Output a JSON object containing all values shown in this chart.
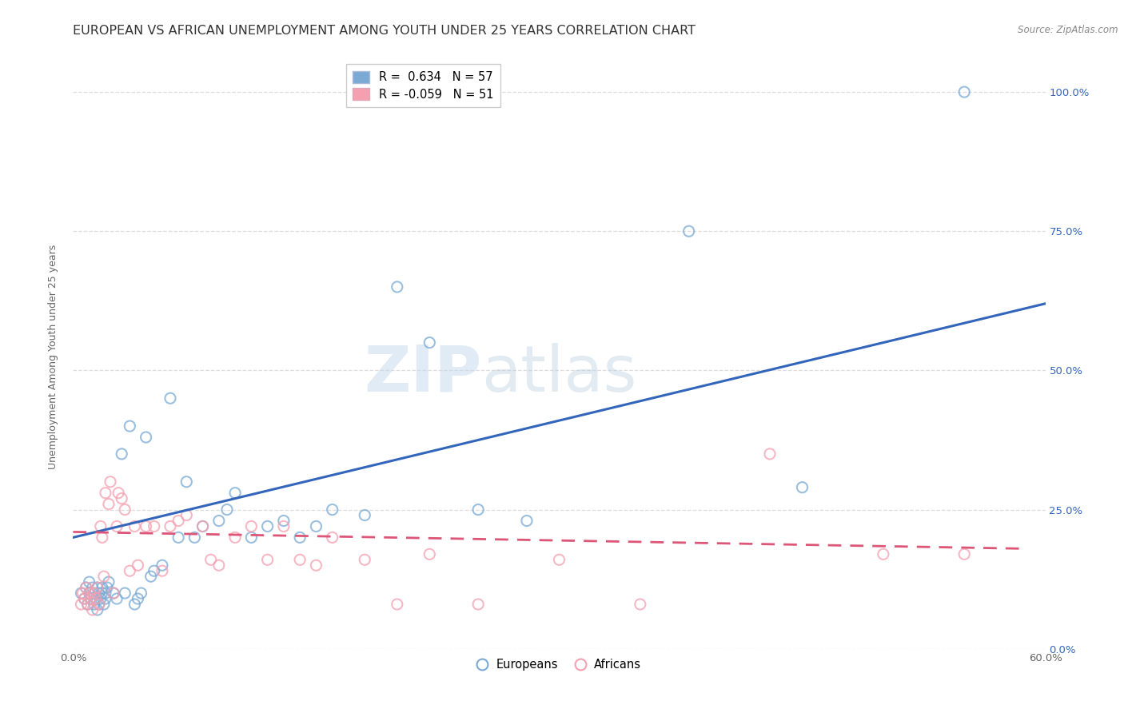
{
  "title": "EUROPEAN VS AFRICAN UNEMPLOYMENT AMONG YOUTH UNDER 25 YEARS CORRELATION CHART",
  "source": "Source: ZipAtlas.com",
  "ylabel": "Unemployment Among Youth under 25 years",
  "xlim": [
    0.0,
    0.6
  ],
  "ylim": [
    0.0,
    1.05
  ],
  "xticks": [
    0.0,
    0.1,
    0.2,
    0.3,
    0.4,
    0.5,
    0.6
  ],
  "xtick_labels": [
    "0.0%",
    "",
    "",
    "",
    "",
    "",
    "60.0%"
  ],
  "ytick_labels_right": [
    "0.0%",
    "25.0%",
    "50.0%",
    "75.0%",
    "100.0%"
  ],
  "yticks_right": [
    0.0,
    0.25,
    0.5,
    0.75,
    1.0
  ],
  "legend_entries": [
    {
      "label": "R =  0.634   N = 57",
      "color": "#7aaad4"
    },
    {
      "label": "R = -0.059   N = 51",
      "color": "#f4a0b0"
    }
  ],
  "blue_scatter_x": [
    0.005,
    0.007,
    0.008,
    0.009,
    0.01,
    0.01,
    0.011,
    0.012,
    0.013,
    0.013,
    0.014,
    0.015,
    0.015,
    0.016,
    0.016,
    0.017,
    0.018,
    0.018,
    0.019,
    0.02,
    0.02,
    0.021,
    0.022,
    0.025,
    0.027,
    0.03,
    0.032,
    0.035,
    0.038,
    0.04,
    0.042,
    0.045,
    0.048,
    0.05,
    0.055,
    0.06,
    0.065,
    0.07,
    0.075,
    0.08,
    0.09,
    0.095,
    0.1,
    0.11,
    0.12,
    0.13,
    0.14,
    0.15,
    0.16,
    0.18,
    0.2,
    0.22,
    0.25,
    0.28,
    0.38,
    0.45,
    0.55
  ],
  "blue_scatter_y": [
    0.1,
    0.09,
    0.11,
    0.08,
    0.1,
    0.12,
    0.09,
    0.11,
    0.08,
    0.1,
    0.09,
    0.11,
    0.07,
    0.1,
    0.08,
    0.09,
    0.1,
    0.11,
    0.08,
    0.09,
    0.1,
    0.11,
    0.12,
    0.1,
    0.09,
    0.35,
    0.1,
    0.4,
    0.08,
    0.09,
    0.1,
    0.38,
    0.13,
    0.14,
    0.15,
    0.45,
    0.2,
    0.3,
    0.2,
    0.22,
    0.23,
    0.25,
    0.28,
    0.2,
    0.22,
    0.23,
    0.2,
    0.22,
    0.25,
    0.24,
    0.65,
    0.55,
    0.25,
    0.23,
    0.75,
    0.29,
    1.0
  ],
  "pink_scatter_x": [
    0.005,
    0.006,
    0.007,
    0.008,
    0.009,
    0.01,
    0.011,
    0.012,
    0.013,
    0.014,
    0.015,
    0.016,
    0.017,
    0.018,
    0.019,
    0.02,
    0.022,
    0.023,
    0.025,
    0.027,
    0.028,
    0.03,
    0.032,
    0.035,
    0.038,
    0.04,
    0.045,
    0.05,
    0.055,
    0.06,
    0.065,
    0.07,
    0.08,
    0.085,
    0.09,
    0.1,
    0.11,
    0.12,
    0.13,
    0.14,
    0.15,
    0.16,
    0.18,
    0.2,
    0.22,
    0.25,
    0.3,
    0.35,
    0.43,
    0.5,
    0.55
  ],
  "pink_scatter_y": [
    0.08,
    0.1,
    0.09,
    0.11,
    0.08,
    0.1,
    0.09,
    0.07,
    0.1,
    0.09,
    0.11,
    0.08,
    0.22,
    0.2,
    0.13,
    0.28,
    0.26,
    0.3,
    0.1,
    0.22,
    0.28,
    0.27,
    0.25,
    0.14,
    0.22,
    0.15,
    0.22,
    0.22,
    0.14,
    0.22,
    0.23,
    0.24,
    0.22,
    0.16,
    0.15,
    0.2,
    0.22,
    0.16,
    0.22,
    0.16,
    0.15,
    0.2,
    0.16,
    0.08,
    0.17,
    0.08,
    0.16,
    0.08,
    0.35,
    0.17,
    0.17
  ],
  "blue_line_x": [
    0.0,
    0.6
  ],
  "blue_line_y": [
    0.2,
    0.62
  ],
  "pink_line_x": [
    0.0,
    0.585
  ],
  "pink_line_y": [
    0.21,
    0.18
  ],
  "background_color": "#ffffff",
  "grid_color": "#dddddd",
  "blue_color": "#7aaad4",
  "pink_color": "#f4a0b0",
  "blue_line_color": "#3366bb",
  "pink_line_color": "#dd5577",
  "watermark_zip": "ZIP",
  "watermark_atlas": "atlas",
  "title_fontsize": 11.5,
  "axis_label_fontsize": 9,
  "tick_fontsize": 9.5
}
